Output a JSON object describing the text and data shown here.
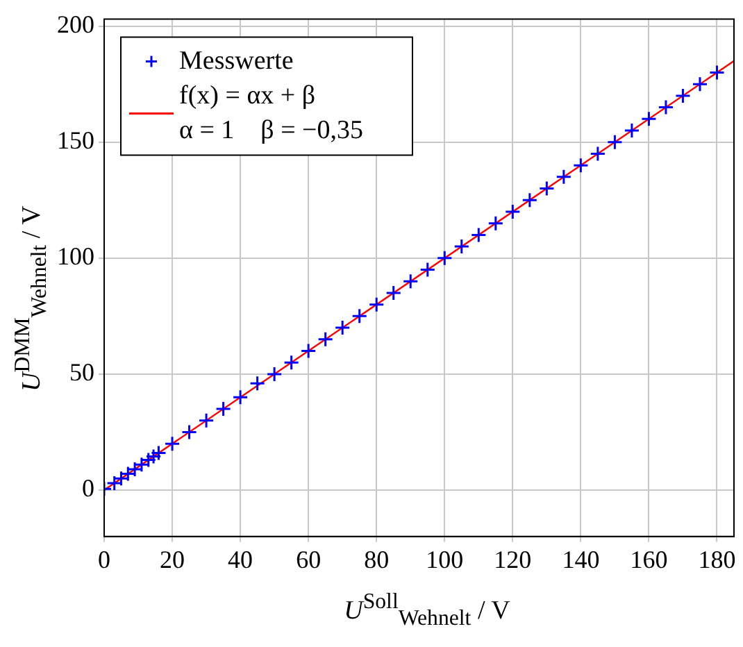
{
  "chart_data": {
    "type": "scatter",
    "xlabel": "U$^{Soll}$$_{Wehnelt}$ / V",
    "ylabel": "U$^{DMM}$$_{Wehnelt}$ / V",
    "x": [
      0,
      3,
      5,
      7,
      9,
      11,
      13,
      14.5,
      16,
      20,
      25,
      30,
      35,
      40,
      45,
      50,
      55,
      60,
      65,
      70,
      75,
      80,
      85,
      90,
      95,
      100,
      105,
      110,
      115,
      120,
      125,
      130,
      135,
      140,
      145,
      150,
      155,
      160,
      165,
      170,
      175,
      180
    ],
    "series": [
      {
        "name": "Messwerte",
        "color": "#0000ff",
        "marker": "cross",
        "values": [
          0.5,
          3,
          5,
          7,
          9,
          11,
          13,
          14.5,
          16,
          20,
          25,
          30,
          35,
          40,
          46,
          50,
          55,
          60,
          65,
          70,
          75,
          80,
          85,
          90,
          95,
          100,
          105,
          110,
          115,
          120,
          125,
          130,
          135,
          140,
          145,
          150,
          155,
          160,
          165,
          170,
          175,
          180
        ]
      },
      {
        "name": "f(x) = αx + β\nα = 1    β = −0,35",
        "type": "line",
        "color": "#ff0000",
        "marker": "none",
        "x": [
          0,
          185
        ],
        "values": [
          0,
          185
        ]
      }
    ],
    "xlim": [
      0,
      185
    ],
    "ylim": [
      -20,
      203
    ],
    "xticks": [
      0,
      20,
      40,
      60,
      80,
      100,
      120,
      140,
      160,
      180
    ],
    "yticks": [
      0,
      50,
      100,
      150,
      200
    ],
    "grid": true,
    "legend": "top left"
  }
}
